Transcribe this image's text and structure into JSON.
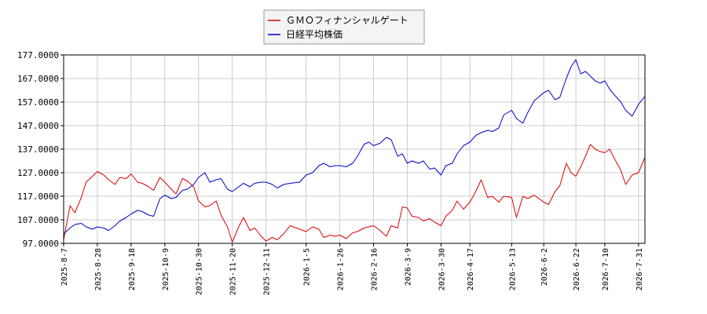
{
  "chart_data": {
    "type": "line",
    "title": "",
    "xlabel": "",
    "ylabel": "",
    "ylim": [
      97,
      177
    ],
    "yticks": [
      "97.0000",
      "107.0000",
      "117.0000",
      "127.0000",
      "137.0000",
      "147.0000",
      "157.0000",
      "167.0000",
      "177.0000"
    ],
    "x_range": [
      "2025-08-07",
      "2026-08-04"
    ],
    "xticks": [
      "2025-8-7",
      "2025-8-28",
      "2025-9-18",
      "2025-10-9",
      "2025-10-30",
      "2025-11-20",
      "2025-12-11",
      "2026-1-5",
      "2026-1-26",
      "2026-2-16",
      "2026-3-9",
      "2026-3-30",
      "2026-4-17",
      "2026-5-13",
      "2026-6-2",
      "2026-6-22",
      "2026-7-10",
      "2026-7-31"
    ],
    "grid": true,
    "legend_position": "top-center",
    "series": [
      {
        "name": "ＧＭＯフィナンシャルゲート",
        "color": "#dd0000",
        "points": [
          [
            "2025-08-07",
            98.5
          ],
          [
            "2025-08-11",
            113.0
          ],
          [
            "2025-08-14",
            110.0
          ],
          [
            "2025-08-18",
            116.5
          ],
          [
            "2025-08-21",
            123.0
          ],
          [
            "2025-08-25",
            125.5
          ],
          [
            "2025-08-28",
            127.5
          ],
          [
            "2025-09-01",
            126.0
          ],
          [
            "2025-09-04",
            124.0
          ],
          [
            "2025-09-08",
            122.0
          ],
          [
            "2025-09-11",
            125.0
          ],
          [
            "2025-09-15",
            124.5
          ],
          [
            "2025-09-18",
            126.5
          ],
          [
            "2025-09-22",
            123.0
          ],
          [
            "2025-09-25",
            122.5
          ],
          [
            "2025-09-29",
            121.0
          ],
          [
            "2025-10-02",
            119.5
          ],
          [
            "2025-10-06",
            125.0
          ],
          [
            "2025-10-09",
            123.0
          ],
          [
            "2025-10-13",
            120.0
          ],
          [
            "2025-10-16",
            118.0
          ],
          [
            "2025-10-20",
            124.5
          ],
          [
            "2025-10-23",
            123.5
          ],
          [
            "2025-10-27",
            121.0
          ],
          [
            "2025-10-30",
            115.0
          ],
          [
            "2025-11-03",
            112.5
          ],
          [
            "2025-11-06",
            113.0
          ],
          [
            "2025-11-10",
            115.0
          ],
          [
            "2025-11-13",
            109.0
          ],
          [
            "2025-11-17",
            104.0
          ],
          [
            "2025-11-20",
            97.5
          ],
          [
            "2025-11-24",
            104.0
          ],
          [
            "2025-11-27",
            108.0
          ],
          [
            "2025-12-01",
            102.5
          ],
          [
            "2025-12-04",
            103.5
          ],
          [
            "2025-12-08",
            100.0
          ],
          [
            "2025-12-11",
            98.0
          ],
          [
            "2025-12-15",
            99.5
          ],
          [
            "2025-12-18",
            98.5
          ],
          [
            "2025-12-22",
            101.0
          ],
          [
            "2025-12-26",
            104.5
          ],
          [
            "2026-01-01",
            103.0
          ],
          [
            "2026-01-05",
            102.0
          ],
          [
            "2026-01-09",
            104.0
          ],
          [
            "2026-01-13",
            103.0
          ],
          [
            "2026-01-16",
            99.5
          ],
          [
            "2026-01-20",
            100.5
          ],
          [
            "2026-01-23",
            100.0
          ],
          [
            "2026-01-26",
            100.5
          ],
          [
            "2026-01-30",
            99.0
          ],
          [
            "2026-02-03",
            101.5
          ],
          [
            "2026-02-06",
            102.0
          ],
          [
            "2026-02-10",
            103.5
          ],
          [
            "2026-02-13",
            104.0
          ],
          [
            "2026-02-16",
            104.5
          ],
          [
            "2026-02-20",
            102.5
          ],
          [
            "2026-02-24",
            100.0
          ],
          [
            "2026-02-27",
            104.5
          ],
          [
            "2026-03-03",
            103.5
          ],
          [
            "2026-03-06",
            112.5
          ],
          [
            "2026-03-09",
            112.0
          ],
          [
            "2026-03-12",
            108.5
          ],
          [
            "2026-03-16",
            108.0
          ],
          [
            "2026-03-19",
            106.5
          ],
          [
            "2026-03-23",
            107.5
          ],
          [
            "2026-03-26",
            106.0
          ],
          [
            "2026-03-30",
            104.5
          ],
          [
            "2026-04-02",
            108.5
          ],
          [
            "2026-04-06",
            111.0
          ],
          [
            "2026-04-09",
            115.0
          ],
          [
            "2026-04-13",
            111.5
          ],
          [
            "2026-04-17",
            114.5
          ],
          [
            "2026-04-21",
            119.5
          ],
          [
            "2026-04-24",
            124.0
          ],
          [
            "2026-04-28",
            116.5
          ],
          [
            "2026-05-01",
            117.0
          ],
          [
            "2026-05-05",
            114.5
          ],
          [
            "2026-05-08",
            117.0
          ],
          [
            "2026-05-13",
            116.5
          ],
          [
            "2026-05-16",
            108.0
          ],
          [
            "2026-05-20",
            117.0
          ],
          [
            "2026-05-23",
            116.0
          ],
          [
            "2026-05-27",
            117.5
          ],
          [
            "2026-06-02",
            114.5
          ],
          [
            "2026-06-05",
            113.5
          ],
          [
            "2026-06-09",
            119.0
          ],
          [
            "2026-06-12",
            121.5
          ],
          [
            "2026-06-16",
            131.0
          ],
          [
            "2026-06-19",
            127.0
          ],
          [
            "2026-06-22",
            125.5
          ],
          [
            "2026-06-25",
            129.5
          ],
          [
            "2026-06-28",
            134.0
          ],
          [
            "2026-07-01",
            139.0
          ],
          [
            "2026-07-04",
            137.0
          ],
          [
            "2026-07-07",
            136.0
          ],
          [
            "2026-07-10",
            135.5
          ],
          [
            "2026-07-13",
            137.0
          ],
          [
            "2026-07-16",
            133.0
          ],
          [
            "2026-07-20",
            128.0
          ],
          [
            "2026-07-23",
            122.0
          ],
          [
            "2026-07-27",
            126.0
          ],
          [
            "2026-07-31",
            127.0
          ],
          [
            "2026-08-04",
            133.5
          ]
        ]
      },
      {
        "name": "日経平均株価",
        "color": "#0000cc",
        "points": [
          [
            "2025-08-07",
            101.0
          ],
          [
            "2025-08-11",
            103.5
          ],
          [
            "2025-08-14",
            105.0
          ],
          [
            "2025-08-18",
            105.5
          ],
          [
            "2025-08-21",
            104.0
          ],
          [
            "2025-08-25",
            103.0
          ],
          [
            "2025-08-28",
            104.0
          ],
          [
            "2025-09-01",
            103.5
          ],
          [
            "2025-09-04",
            102.5
          ],
          [
            "2025-09-08",
            104.5
          ],
          [
            "2025-09-11",
            106.5
          ],
          [
            "2025-09-15",
            108.0
          ],
          [
            "2025-09-18",
            109.5
          ],
          [
            "2025-09-22",
            111.0
          ],
          [
            "2025-09-25",
            110.5
          ],
          [
            "2025-09-29",
            109.0
          ],
          [
            "2025-10-02",
            108.5
          ],
          [
            "2025-10-06",
            116.0
          ],
          [
            "2025-10-09",
            117.5
          ],
          [
            "2025-10-13",
            116.0
          ],
          [
            "2025-10-16",
            116.5
          ],
          [
            "2025-10-20",
            119.5
          ],
          [
            "2025-10-23",
            120.0
          ],
          [
            "2025-10-27",
            122.0
          ],
          [
            "2025-10-30",
            125.0
          ],
          [
            "2025-11-03",
            127.0
          ],
          [
            "2025-11-06",
            123.0
          ],
          [
            "2025-11-10",
            124.0
          ],
          [
            "2025-11-13",
            124.5
          ],
          [
            "2025-11-17",
            120.0
          ],
          [
            "2025-11-20",
            119.0
          ],
          [
            "2025-11-24",
            121.0
          ],
          [
            "2025-11-27",
            122.5
          ],
          [
            "2025-12-01",
            121.0
          ],
          [
            "2025-12-04",
            122.5
          ],
          [
            "2025-12-08",
            123.0
          ],
          [
            "2025-12-11",
            123.0
          ],
          [
            "2025-12-15",
            122.0
          ],
          [
            "2025-12-18",
            120.5
          ],
          [
            "2025-12-22",
            122.0
          ],
          [
            "2025-12-26",
            122.5
          ],
          [
            "2026-01-01",
            123.0
          ],
          [
            "2026-01-05",
            126.0
          ],
          [
            "2026-01-09",
            127.0
          ],
          [
            "2026-01-13",
            130.0
          ],
          [
            "2026-01-16",
            131.0
          ],
          [
            "2026-01-20",
            129.5
          ],
          [
            "2026-01-23",
            130.0
          ],
          [
            "2026-01-26",
            130.0
          ],
          [
            "2026-01-30",
            129.5
          ],
          [
            "2026-02-03",
            131.0
          ],
          [
            "2026-02-06",
            134.0
          ],
          [
            "2026-02-10",
            139.0
          ],
          [
            "2026-02-13",
            140.0
          ],
          [
            "2026-02-16",
            138.5
          ],
          [
            "2026-02-20",
            139.5
          ],
          [
            "2026-02-24",
            142.0
          ],
          [
            "2026-02-27",
            141.0
          ],
          [
            "2026-03-03",
            134.0
          ],
          [
            "2026-03-06",
            135.0
          ],
          [
            "2026-03-09",
            131.0
          ],
          [
            "2026-03-12",
            132.0
          ],
          [
            "2026-03-16",
            131.0
          ],
          [
            "2026-03-19",
            132.0
          ],
          [
            "2026-03-23",
            128.5
          ],
          [
            "2026-03-26",
            129.0
          ],
          [
            "2026-03-30",
            126.0
          ],
          [
            "2026-04-02",
            130.0
          ],
          [
            "2026-04-06",
            131.0
          ],
          [
            "2026-04-09",
            135.0
          ],
          [
            "2026-04-13",
            138.5
          ],
          [
            "2026-04-17",
            140.0
          ],
          [
            "2026-04-21",
            143.0
          ],
          [
            "2026-04-24",
            144.0
          ],
          [
            "2026-04-28",
            145.0
          ],
          [
            "2026-05-01",
            144.5
          ],
          [
            "2026-05-05",
            146.0
          ],
          [
            "2026-05-08",
            151.5
          ],
          [
            "2026-05-13",
            153.5
          ],
          [
            "2026-05-16",
            150.0
          ],
          [
            "2026-05-20",
            148.0
          ],
          [
            "2026-05-23",
            152.5
          ],
          [
            "2026-05-27",
            157.5
          ],
          [
            "2026-06-02",
            161.0
          ],
          [
            "2026-06-05",
            162.0
          ],
          [
            "2026-06-09",
            158.0
          ],
          [
            "2026-06-12",
            159.0
          ],
          [
            "2026-06-16",
            167.0
          ],
          [
            "2026-06-19",
            172.0
          ],
          [
            "2026-06-22",
            175.0
          ],
          [
            "2026-06-25",
            169.0
          ],
          [
            "2026-06-28",
            170.0
          ],
          [
            "2026-07-01",
            168.0
          ],
          [
            "2026-07-04",
            166.0
          ],
          [
            "2026-07-07",
            165.0
          ],
          [
            "2026-07-10",
            166.0
          ],
          [
            "2026-07-13",
            162.5
          ],
          [
            "2026-07-16",
            160.0
          ],
          [
            "2026-07-20",
            157.0
          ],
          [
            "2026-07-23",
            153.5
          ],
          [
            "2026-07-27",
            151.0
          ],
          [
            "2026-07-31",
            156.0
          ],
          [
            "2026-08-04",
            159.5
          ]
        ]
      }
    ]
  }
}
